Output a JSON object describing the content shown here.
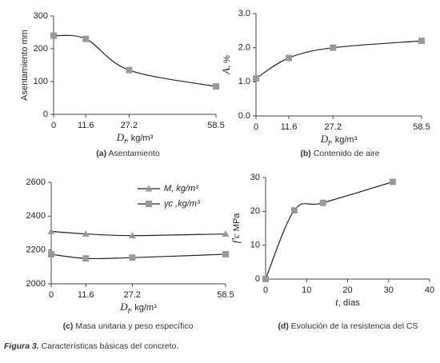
{
  "chart_data": [
    {
      "type": "line",
      "caption_label": "(a)",
      "caption": "Asentamiento",
      "ylabel": {
        "text": "Asentamiento mm"
      },
      "xlabel": {
        "symbol": "D",
        "subscript": "f",
        "unit": ",  kg/m³"
      },
      "x": [
        0,
        11.6,
        27.2,
        58.5
      ],
      "xlim": [
        0,
        58.5
      ],
      "xticks": [
        0,
        11.6,
        27.2,
        58.5
      ],
      "ylim": [
        0,
        300
      ],
      "yticks": [
        0,
        100,
        200,
        300
      ],
      "series": [
        {
          "color": "#999999",
          "marker": "square",
          "values": [
            240,
            230,
            135,
            85
          ]
        }
      ]
    },
    {
      "type": "line",
      "caption_label": "(b)",
      "caption": "Contenido de aire",
      "ylabel": {
        "symbol": "A",
        "unit": ", %"
      },
      "xlabel": {
        "symbol": "D",
        "subscript": "f",
        "unit": ",  kg/m³"
      },
      "x": [
        0,
        11.6,
        27.2,
        58.5
      ],
      "xlim": [
        0,
        58.5
      ],
      "xticks": [
        0,
        11.6,
        27.2,
        58.5
      ],
      "ylim": [
        0,
        3
      ],
      "yticks": [
        {
          "value": 0,
          "label": "0.0"
        },
        {
          "value": 1,
          "label": "1.0"
        },
        {
          "value": 2,
          "label": "2.0"
        },
        {
          "value": 3,
          "label": "3.0"
        }
      ],
      "series": [
        {
          "color": "#999999",
          "marker": "square",
          "values": [
            1.1,
            1.7,
            2.0,
            2.2
          ]
        }
      ]
    },
    {
      "type": "line",
      "caption_label": "(c)",
      "caption": "Masa unitaria y peso específico",
      "xlabel": {
        "symbol": "D",
        "subscript": "f",
        "unit": ",  kg/m³"
      },
      "x": [
        0,
        11.6,
        27.2,
        58.5
      ],
      "xlim": [
        0,
        58.5
      ],
      "xticks": [
        0,
        11.6,
        27.2,
        58.5
      ],
      "ylim": [
        2000,
        2600
      ],
      "yticks": [
        2000,
        2200,
        2400,
        2600
      ],
      "series": [
        {
          "name": "M, kg/m³",
          "color": "#999999",
          "marker": "triangle",
          "values": [
            2310,
            2295,
            2285,
            2295
          ]
        },
        {
          "name": "γc ,kg/m³",
          "color": "#999999",
          "marker": "square",
          "values": [
            2175,
            2150,
            2155,
            2175
          ]
        }
      ]
    },
    {
      "type": "line",
      "caption_label": "(d)",
      "caption": "Evolución de la resistencia del CS",
      "ylabel": {
        "symbol": "f'c",
        "unit": "  MPa"
      },
      "xlabel": {
        "symbol": "t",
        "unit": ",  días"
      },
      "x": [
        0,
        7,
        14,
        31
      ],
      "xlim": [
        0,
        40
      ],
      "xticks": [
        0,
        10,
        20,
        30,
        40
      ],
      "ylim": [
        0,
        30
      ],
      "yticks": [
        0,
        10,
        20,
        30
      ],
      "series": [
        {
          "color": "#999999",
          "marker": "square",
          "values": [
            0,
            20.3,
            22.5,
            28.7
          ]
        }
      ]
    }
  ],
  "figure_caption": {
    "label": "Figura 3.",
    "text": "Características básicas del concreto."
  }
}
